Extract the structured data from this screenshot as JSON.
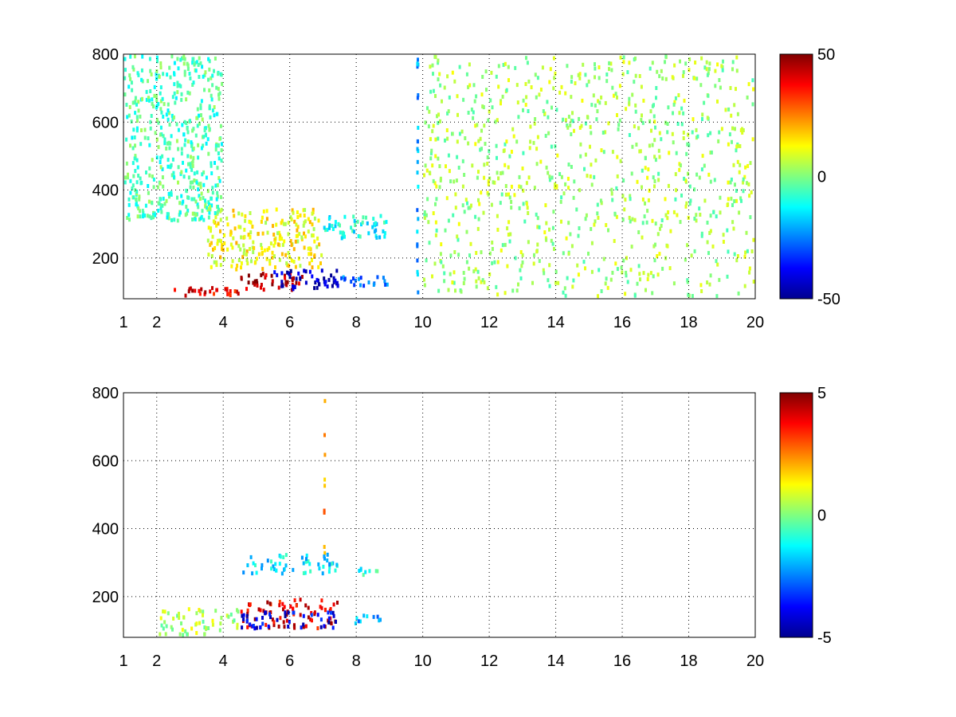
{
  "chart_data": [
    {
      "type": "heatmap",
      "title": "",
      "xlabel": "",
      "ylabel": "",
      "xlim": [
        1,
        20
      ],
      "ylim": [
        80,
        800
      ],
      "grid": true,
      "grid_style": "dotted",
      "x_ticks": [
        1,
        2,
        4,
        6,
        8,
        10,
        12,
        14,
        16,
        18,
        20
      ],
      "y_ticks": [
        200,
        400,
        600,
        800
      ],
      "colormap": "jet",
      "colorbar": {
        "min": -50,
        "max": 50,
        "ticks": [
          -50,
          0,
          50
        ],
        "placement": "right"
      },
      "description_of_values": "sparse scattered values; strongest positive (red) near x 2.5-6.5 at y 80-150, negative (blue) near x 5.5-7.5 at y 100-170, sparse near-zero speckle extending to x 20",
      "hotspots": [
        {
          "x": [
            2.5,
            4.5
          ],
          "y": [
            80,
            120
          ],
          "value": 40
        },
        {
          "x": [
            4.5,
            6.5
          ],
          "y": [
            100,
            160
          ],
          "value": 45
        },
        {
          "x": [
            5.5,
            7.5
          ],
          "y": [
            100,
            170
          ],
          "value": -45
        },
        {
          "x": [
            7.5,
            9.0
          ],
          "y": [
            110,
            150
          ],
          "value": -25
        },
        {
          "x": [
            3.5,
            7.0
          ],
          "y": [
            160,
            350
          ],
          "value": 12
        },
        {
          "x": [
            7.0,
            9.0
          ],
          "y": [
            250,
            330
          ],
          "value": -12
        },
        {
          "x": [
            9.8,
            9.9
          ],
          "y": [
            80,
            800
          ],
          "value": -20
        },
        {
          "x": [
            1,
            4
          ],
          "y": [
            300,
            800
          ],
          "value": -5
        },
        {
          "x": [
            10,
            20
          ],
          "y": [
            80,
            800
          ],
          "value": 3
        }
      ]
    },
    {
      "type": "heatmap",
      "title": "",
      "xlabel": "",
      "ylabel": "",
      "xlim": [
        1,
        20
      ],
      "ylim": [
        80,
        800
      ],
      "grid": true,
      "grid_style": "dotted",
      "x_ticks": [
        1,
        2,
        4,
        6,
        8,
        10,
        12,
        14,
        16,
        18,
        20
      ],
      "y_ticks": [
        200,
        400,
        600,
        800
      ],
      "colormap": "jet",
      "colorbar": {
        "min": -5,
        "max": 5,
        "ticks": [
          -5,
          0,
          5
        ],
        "placement": "right"
      },
      "description_of_values": "values concentrated at x 2-9, y 80-300; mixed red/blue speckle near x 4.5-7.5, y 100-200; thin vertical streak at x 7",
      "hotspots": [
        {
          "x": [
            2.0,
            4.5
          ],
          "y": [
            80,
            170
          ],
          "value": 0.5
        },
        {
          "x": [
            4.5,
            7.5
          ],
          "y": [
            100,
            200
          ],
          "value": 4
        },
        {
          "x": [
            4.5,
            7.5
          ],
          "y": [
            100,
            160
          ],
          "value": -4
        },
        {
          "x": [
            7.8,
            8.8
          ],
          "y": [
            110,
            150
          ],
          "value": -2
        },
        {
          "x": [
            7.0,
            7.05
          ],
          "y": [
            120,
            790
          ],
          "value": 2.5
        },
        {
          "x": [
            4.5,
            7.5
          ],
          "y": [
            260,
            330
          ],
          "value": -1.5
        },
        {
          "x": [
            8.0,
            8.8
          ],
          "y": [
            250,
            290
          ],
          "value": -1
        }
      ]
    }
  ]
}
